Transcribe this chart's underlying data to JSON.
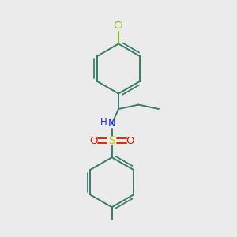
{
  "background_color": "#ebebeb",
  "bond_color": "#3a7a6a",
  "cl_color": "#7ab020",
  "n_color": "#2020d0",
  "s_color": "#c8c000",
  "o_color": "#d02000",
  "figsize": [
    3.0,
    3.0
  ],
  "dpi": 100,
  "xlim": [
    0,
    10
  ],
  "ylim": [
    0,
    10
  ]
}
